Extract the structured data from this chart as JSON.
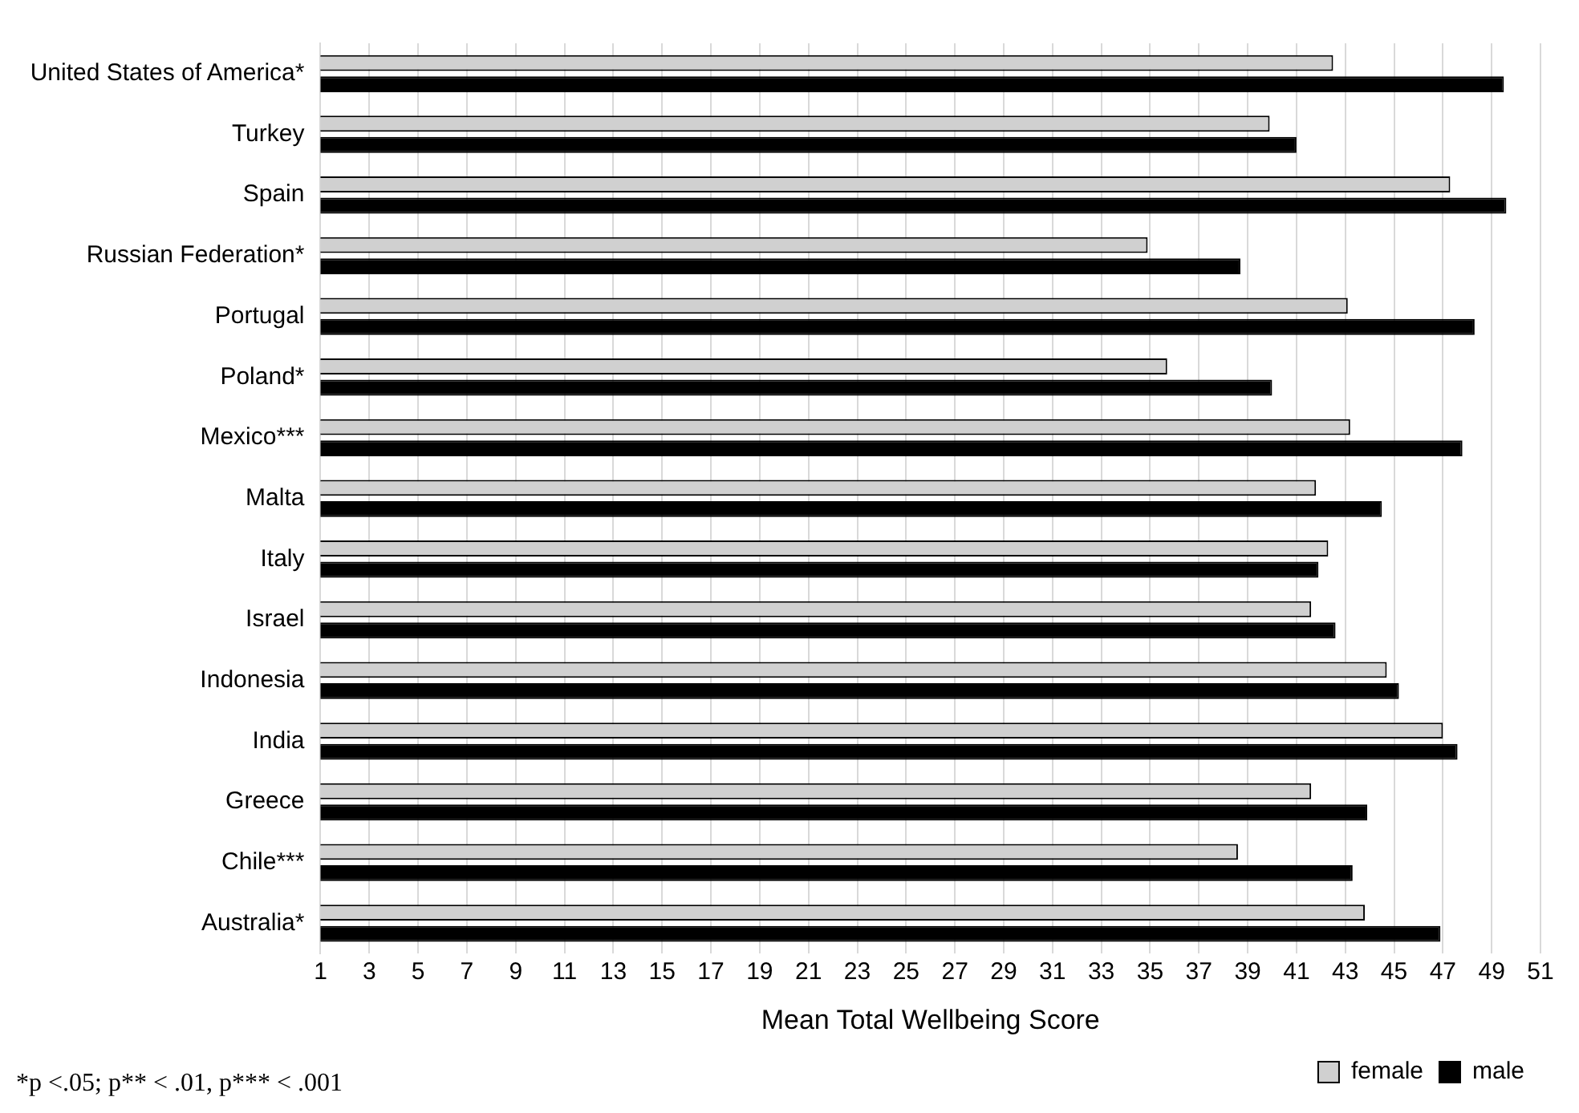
{
  "chart_data": {
    "type": "bar",
    "orientation": "horizontal",
    "xlabel": "Mean Total Wellbeing Score",
    "categories": [
      "United States of America*",
      "Turkey",
      "Spain",
      "Russian Federation*",
      "Portugal",
      "Poland*",
      "Mexico***",
      "Malta",
      "Italy",
      "Israel",
      "Indonesia",
      "India",
      "Greece",
      "Chile***",
      "Australia*"
    ],
    "series": [
      {
        "name": "female",
        "color": "#d0d0d0",
        "values": [
          42.5,
          39.9,
          47.3,
          34.9,
          43.1,
          35.7,
          43.2,
          41.8,
          42.3,
          41.6,
          44.7,
          47.0,
          41.6,
          38.6,
          43.8
        ]
      },
      {
        "name": "male",
        "color": "#000000",
        "values": [
          49.5,
          41.0,
          49.6,
          38.7,
          48.3,
          40.0,
          47.8,
          44.5,
          41.9,
          42.6,
          45.2,
          47.6,
          43.9,
          43.3,
          46.9
        ]
      }
    ],
    "xlim": [
      1,
      51
    ],
    "xticks": [
      1,
      3,
      5,
      7,
      9,
      11,
      13,
      15,
      17,
      19,
      21,
      23,
      25,
      27,
      29,
      31,
      33,
      35,
      37,
      39,
      41,
      43,
      45,
      47,
      49,
      51
    ],
    "grid": "x",
    "legend": "bottom right",
    "annotations": [
      "*p <.05; p** < .01, p*** < .001"
    ]
  }
}
